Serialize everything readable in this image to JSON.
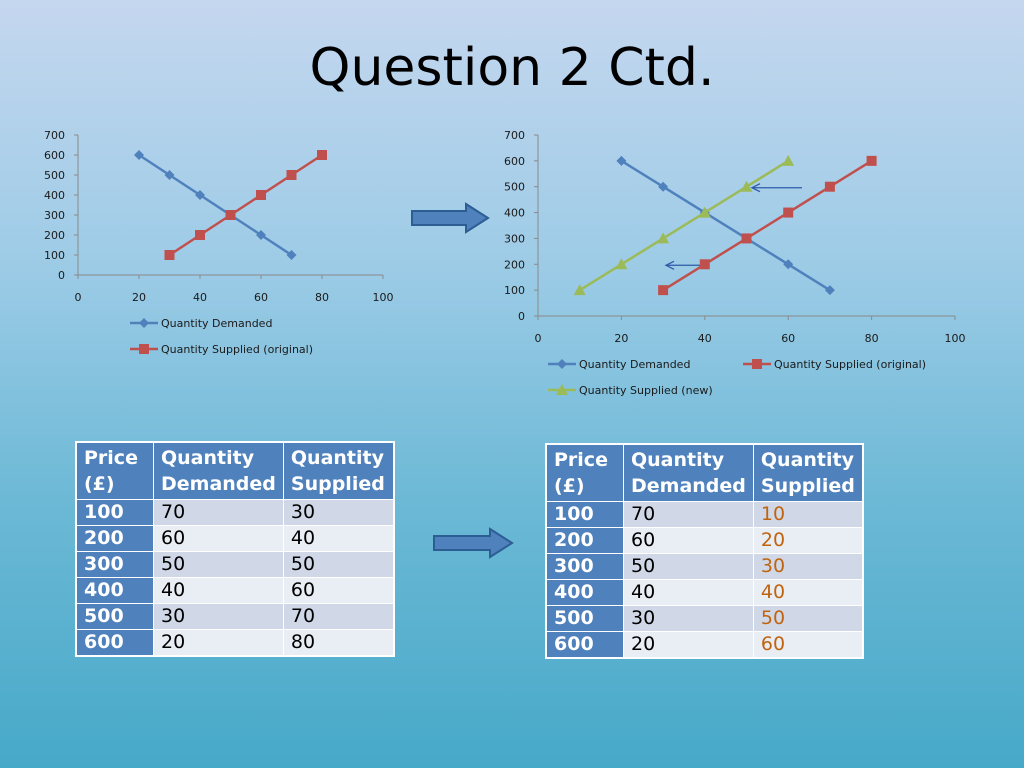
{
  "title": "Question 2 Ctd.",
  "chart_data": [
    {
      "type": "line",
      "xlim": [
        0,
        100
      ],
      "ylim": [
        0,
        700
      ],
      "x_ticks": [
        0,
        20,
        40,
        60,
        80,
        100
      ],
      "y_ticks": [
        0,
        100,
        200,
        300,
        400,
        500,
        600,
        700
      ],
      "legend_position": "bottom",
      "series": [
        {
          "name": "Quantity Demanded",
          "color": "#4f81bd",
          "marker": "diamond",
          "points": [
            [
              20,
              600
            ],
            [
              30,
              500
            ],
            [
              40,
              400
            ],
            [
              50,
              300
            ],
            [
              60,
              200
            ],
            [
              70,
              100
            ]
          ]
        },
        {
          "name": "Quantity Supplied (original)",
          "color": "#c0504d",
          "marker": "square",
          "points": [
            [
              30,
              100
            ],
            [
              40,
              200
            ],
            [
              50,
              300
            ],
            [
              60,
              400
            ],
            [
              70,
              500
            ],
            [
              80,
              600
            ]
          ]
        }
      ]
    },
    {
      "type": "line",
      "xlim": [
        0,
        100
      ],
      "ylim": [
        0,
        700
      ],
      "x_ticks": [
        0,
        20,
        40,
        60,
        80,
        100
      ],
      "y_ticks": [
        0,
        100,
        200,
        300,
        400,
        500,
        600,
        700
      ],
      "legend_position": "bottom",
      "annotations": [
        "left-arrow at price 500",
        "left-arrow at price 200"
      ],
      "series": [
        {
          "name": "Quantity Demanded",
          "color": "#4f81bd",
          "marker": "diamond",
          "points": [
            [
              20,
              600
            ],
            [
              30,
              500
            ],
            [
              40,
              400
            ],
            [
              50,
              300
            ],
            [
              60,
              200
            ],
            [
              70,
              100
            ]
          ]
        },
        {
          "name": "Quantity Supplied (original)",
          "color": "#c0504d",
          "marker": "square",
          "points": [
            [
              30,
              100
            ],
            [
              40,
              200
            ],
            [
              50,
              300
            ],
            [
              60,
              400
            ],
            [
              70,
              500
            ],
            [
              80,
              600
            ]
          ]
        },
        {
          "name": "Quantity Supplied (new)",
          "color": "#9bbb59",
          "marker": "triangle",
          "points": [
            [
              10,
              100
            ],
            [
              20,
              200
            ],
            [
              30,
              300
            ],
            [
              40,
              400
            ],
            [
              50,
              500
            ],
            [
              60,
              600
            ]
          ]
        }
      ]
    }
  ],
  "tables": [
    {
      "headers": [
        "Price (£)",
        "Quantity Demanded",
        "Quantity Supplied"
      ],
      "rows": [
        [
          "100",
          "70",
          "30"
        ],
        [
          "200",
          "60",
          "40"
        ],
        [
          "300",
          "50",
          "50"
        ],
        [
          "400",
          "40",
          "60"
        ],
        [
          "500",
          "30",
          "70"
        ],
        [
          "600",
          "20",
          "80"
        ]
      ]
    },
    {
      "headers": [
        "Price (£)",
        "Quantity Demanded",
        "Quantity Supplied"
      ],
      "rows": [
        [
          "100",
          "70",
          "10"
        ],
        [
          "200",
          "60",
          "20"
        ],
        [
          "300",
          "50",
          "30"
        ],
        [
          "400",
          "40",
          "40"
        ],
        [
          "500",
          "30",
          "50"
        ],
        [
          "600",
          "20",
          "60"
        ]
      ]
    }
  ],
  "colors": {
    "header_blue": "#4f81bd",
    "new_supply_text": "#c0640f"
  }
}
